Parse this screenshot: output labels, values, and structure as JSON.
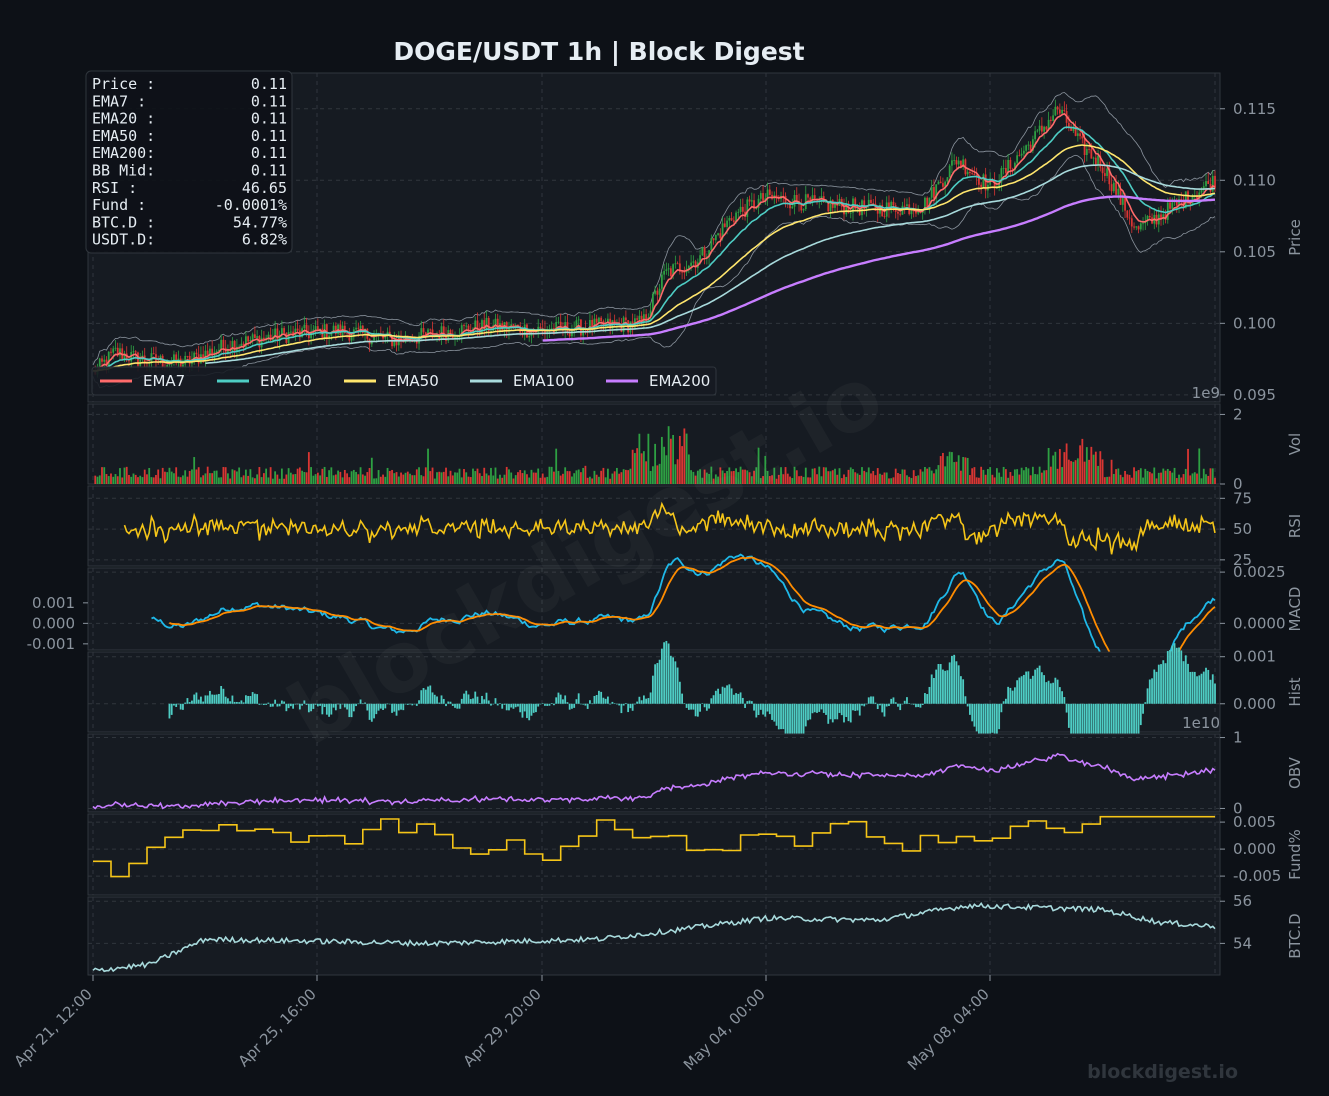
{
  "title": "DOGE/USDT  1h  |  Block Digest",
  "watermark": "blockdigest.io",
  "footer": "blockdigest.io",
  "colors": {
    "background": "#0d1117",
    "panel": "#161b22",
    "grid": "#30363d",
    "up": "#2ea043",
    "down": "#da3633",
    "ema7": "#ff6b6b",
    "ema20": "#4ecdc4",
    "ema50": "#ffe66d",
    "ema100": "#a8dadc",
    "ema200": "#c77dff",
    "rsi": "#f5c518",
    "macd": "#1fb8e8",
    "signal": "#ff8c00",
    "hist": "#4ecdc4",
    "obv": "#c77dff",
    "funding": "#f5c518",
    "btcd": "#a8dadc"
  },
  "info_box": [
    {
      "label": "Price :",
      "value": "0.11"
    },
    {
      "label": "EMA7  :",
      "value": "0.11"
    },
    {
      "label": "EMA20 :",
      "value": "0.11"
    },
    {
      "label": "EMA50 :",
      "value": "0.11"
    },
    {
      "label": "EMA200:",
      "value": "0.11"
    },
    {
      "label": "BB Mid:",
      "value": "0.11"
    },
    {
      "label": "RSI   :",
      "value": "46.65"
    },
    {
      "label": "Fund  :",
      "value": "-0.0001%"
    },
    {
      "label": "BTC.D :",
      "value": "54.77%"
    },
    {
      "label": "USDT.D:",
      "value": "6.82%"
    }
  ],
  "legend": [
    {
      "name": "EMA7",
      "color": "#ff6b6b"
    },
    {
      "name": "EMA20",
      "color": "#4ecdc4"
    },
    {
      "name": "EMA50",
      "color": "#ffe66d"
    },
    {
      "name": "EMA100",
      "color": "#a8dadc"
    },
    {
      "name": "EMA200",
      "color": "#c77dff"
    }
  ],
  "x_ticks": [
    "Apr 21, 12:00",
    "Apr 25, 16:00",
    "Apr 29, 20:00",
    "May 04, 00:00",
    "May 08, 04:00"
  ],
  "chart_data": {
    "type": "line",
    "x_range": [
      "Apr 21, 12:00",
      "May 12, 08:00"
    ],
    "panels": [
      {
        "id": "price",
        "ylabel": "Price",
        "ylim": [
          0.0945,
          0.1175
        ],
        "ticks": [
          "0.095",
          "0.100",
          "0.105",
          "0.110",
          "0.115"
        ],
        "tick_values": [
          0.095,
          0.1,
          0.105,
          0.11,
          0.115
        ],
        "series_names": [
          "EMA7",
          "EMA20",
          "EMA50",
          "EMA100",
          "EMA200"
        ],
        "price_anchors": [
          [
            0,
            0.0965
          ],
          [
            0.02,
            0.098
          ],
          [
            0.04,
            0.0975
          ],
          [
            0.08,
            0.0972
          ],
          [
            0.12,
            0.0985
          ],
          [
            0.17,
            0.0992
          ],
          [
            0.22,
            0.0995
          ],
          [
            0.27,
            0.0988
          ],
          [
            0.3,
            0.0992
          ],
          [
            0.35,
            0.0998
          ],
          [
            0.4,
            0.0995
          ],
          [
            0.45,
            0.0998
          ],
          [
            0.49,
            0.1
          ],
          [
            0.51,
            0.1035
          ],
          [
            0.54,
            0.1045
          ],
          [
            0.57,
            0.1075
          ],
          [
            0.6,
            0.1088
          ],
          [
            0.65,
            0.1083
          ],
          [
            0.7,
            0.108
          ],
          [
            0.74,
            0.1082
          ],
          [
            0.77,
            0.1115
          ],
          [
            0.8,
            0.1095
          ],
          [
            0.84,
            0.113
          ],
          [
            0.86,
            0.115
          ],
          [
            0.88,
            0.1125
          ],
          [
            0.9,
            0.111
          ],
          [
            0.93,
            0.1065
          ],
          [
            0.96,
            0.108
          ],
          [
            1.0,
            0.11
          ]
        ]
      },
      {
        "id": "vol",
        "ylabel": "Vol",
        "exponent": "1e9",
        "ylim": [
          0,
          2.3
        ],
        "ticks": [
          "0",
          "2"
        ],
        "tick_values": [
          0,
          2
        ]
      },
      {
        "id": "rsi",
        "ylabel": "RSI",
        "ylim": [
          20,
          85
        ],
        "ticks": [
          "25",
          "50",
          "75"
        ],
        "tick_values": [
          25,
          50,
          75
        ]
      },
      {
        "id": "macd",
        "ylabel": "MACD",
        "ylim": [
          -0.0013,
          0.0027
        ],
        "ticks_right": [
          "0.0000",
          "0.0025"
        ],
        "tick_values_right": [
          0,
          0.0025
        ],
        "ticks_left": [
          "0.001",
          "0.000",
          "-0.001"
        ],
        "tick_values_left": [
          0.001,
          0.0,
          -0.001
        ]
      },
      {
        "id": "hist",
        "ylabel": "Hist",
        "ylim": [
          -0.0006,
          0.0011
        ],
        "ticks": [
          "0.000",
          "0.001"
        ],
        "tick_values": [
          0,
          0.001
        ]
      },
      {
        "id": "obv",
        "ylabel": "OBV",
        "exponent": "1e10",
        "ylim": [
          -0.05,
          1.05
        ],
        "ticks": [
          "0",
          "1"
        ],
        "tick_values": [
          0,
          1
        ]
      },
      {
        "id": "funding",
        "ylabel": "Fund%",
        "ylim": [
          -0.0085,
          0.0065
        ],
        "ticks": [
          "-0.005",
          "0.000",
          "0.005"
        ],
        "tick_values": [
          -0.005,
          0.0,
          0.005
        ]
      },
      {
        "id": "btcd",
        "ylabel": "BTC.D",
        "ylim": [
          52.5,
          56.2
        ],
        "ticks": [
          "54",
          "56"
        ],
        "tick_values": [
          54,
          56
        ]
      }
    ]
  }
}
